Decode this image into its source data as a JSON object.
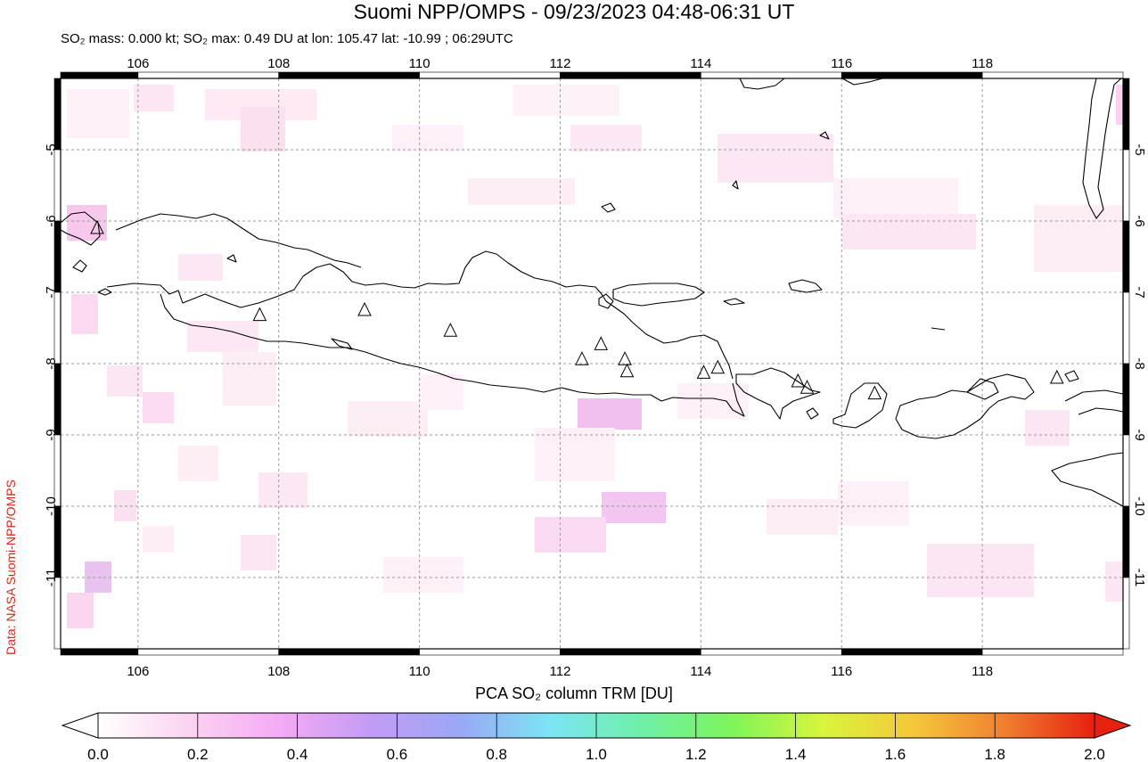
{
  "title": "Suomi NPP/OMPS - 09/23/2023 04:48-06:31 UT",
  "subtitle": "SO₂ mass: 0.000 kt; SO₂ max: 0.49 DU at lon: 105.47 lat: -10.99 ; 06:29UTC",
  "credit": "Data: NASA Suomi-NPP/OMPS",
  "map": {
    "lon_range": [
      104.9,
      120.0
    ],
    "lat_range": [
      -12.0,
      -4.0
    ],
    "lon_ticks": [
      "106",
      "108",
      "110",
      "112",
      "114",
      "116",
      "118"
    ],
    "lat_ticks": [
      "-5",
      "-6",
      "-7",
      "-8",
      "-9",
      "-10",
      "-11"
    ],
    "volcano_marker": "triangle-icon",
    "volcanoes": [
      {
        "lon": 105.42,
        "lat": -6.1
      },
      {
        "lon": 107.73,
        "lat": -7.32
      },
      {
        "lon": 109.22,
        "lat": -7.25
      },
      {
        "lon": 110.44,
        "lat": -7.54
      },
      {
        "lon": 112.31,
        "lat": -7.94
      },
      {
        "lon": 112.58,
        "lat": -7.73
      },
      {
        "lon": 112.92,
        "lat": -7.94
      },
      {
        "lon": 112.95,
        "lat": -8.11
      },
      {
        "lon": 114.04,
        "lat": -8.13
      },
      {
        "lon": 114.24,
        "lat": -8.06
      },
      {
        "lon": 115.38,
        "lat": -8.25
      },
      {
        "lon": 115.51,
        "lat": -8.34
      },
      {
        "lon": 116.47,
        "lat": -8.42
      },
      {
        "lon": 119.06,
        "lat": -8.2
      }
    ]
  },
  "colorbar": {
    "label": "PCA SO₂ column TRM [DU]",
    "ticks": [
      "0.0",
      "0.2",
      "0.4",
      "0.6",
      "0.8",
      "1.0",
      "1.2",
      "1.4",
      "1.6",
      "1.8",
      "2.0"
    ],
    "colors": [
      "#ffffff",
      "#fbd3f0",
      "#f5aaf5",
      "#c39cf4",
      "#9aa8f5",
      "#7ce5f5",
      "#6ef0a8",
      "#7ef55a",
      "#d8f53c",
      "#f5c83a",
      "#f08030",
      "#e82010"
    ]
  }
}
